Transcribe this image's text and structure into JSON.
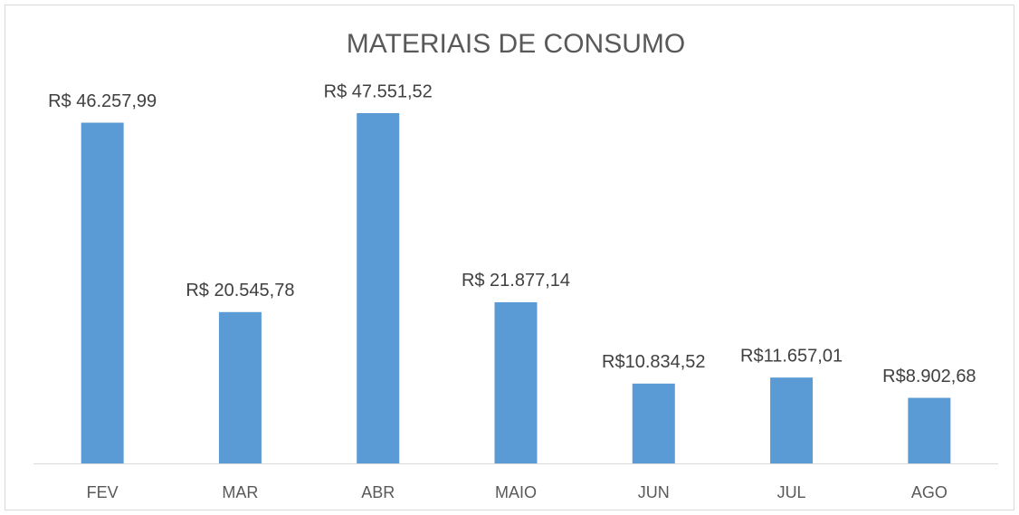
{
  "chart_data": {
    "type": "bar",
    "title": "MATERIAIS DE CONSUMO",
    "categories": [
      "FEV",
      "MAR",
      "ABR",
      "MAIO",
      "JUN",
      "JUL",
      "AGO"
    ],
    "values": [
      46257.99,
      20545.78,
      47551.52,
      21877.14,
      10834.52,
      11657.01,
      8902.68
    ],
    "value_labels": [
      "R$ 46.257,99",
      "R$ 20.545,78",
      "R$ 47.551,52",
      "R$ 21.877,14",
      "R$10.834,52",
      "R$11.657,01",
      "R$8.902,68"
    ],
    "color": "#5b9bd5"
  }
}
